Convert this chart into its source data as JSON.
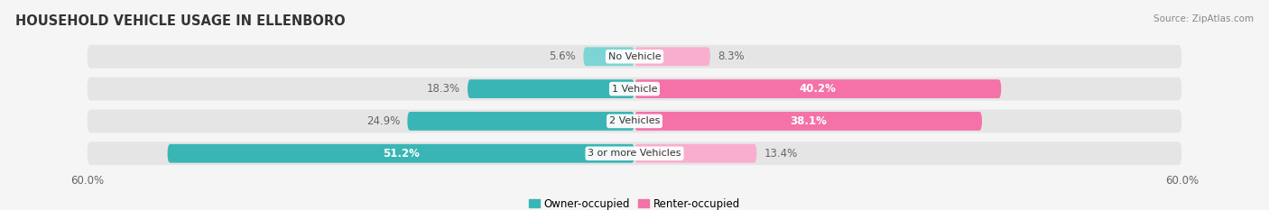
{
  "title": "HOUSEHOLD VEHICLE USAGE IN ELLENBORO",
  "source": "Source: ZipAtlas.com",
  "categories": [
    "No Vehicle",
    "1 Vehicle",
    "2 Vehicles",
    "3 or more Vehicles"
  ],
  "owner_values": [
    5.6,
    18.3,
    24.9,
    51.2
  ],
  "renter_values": [
    8.3,
    40.2,
    38.1,
    13.4
  ],
  "owner_color": "#3ab5b5",
  "renter_color": "#f472a8",
  "owner_color_light": "#7dd4d4",
  "renter_color_light": "#f9aecf",
  "background_color": "#f5f5f5",
  "bar_bg_color": "#e5e5e5",
  "xlim": 60.0,
  "x_tick_labels": [
    "60.0%",
    "60.0%"
  ],
  "legend_owner": "Owner-occupied",
  "legend_renter": "Renter-occupied",
  "title_fontsize": 10.5,
  "label_fontsize": 8.5,
  "bar_height": 0.58,
  "n_rows": 4
}
